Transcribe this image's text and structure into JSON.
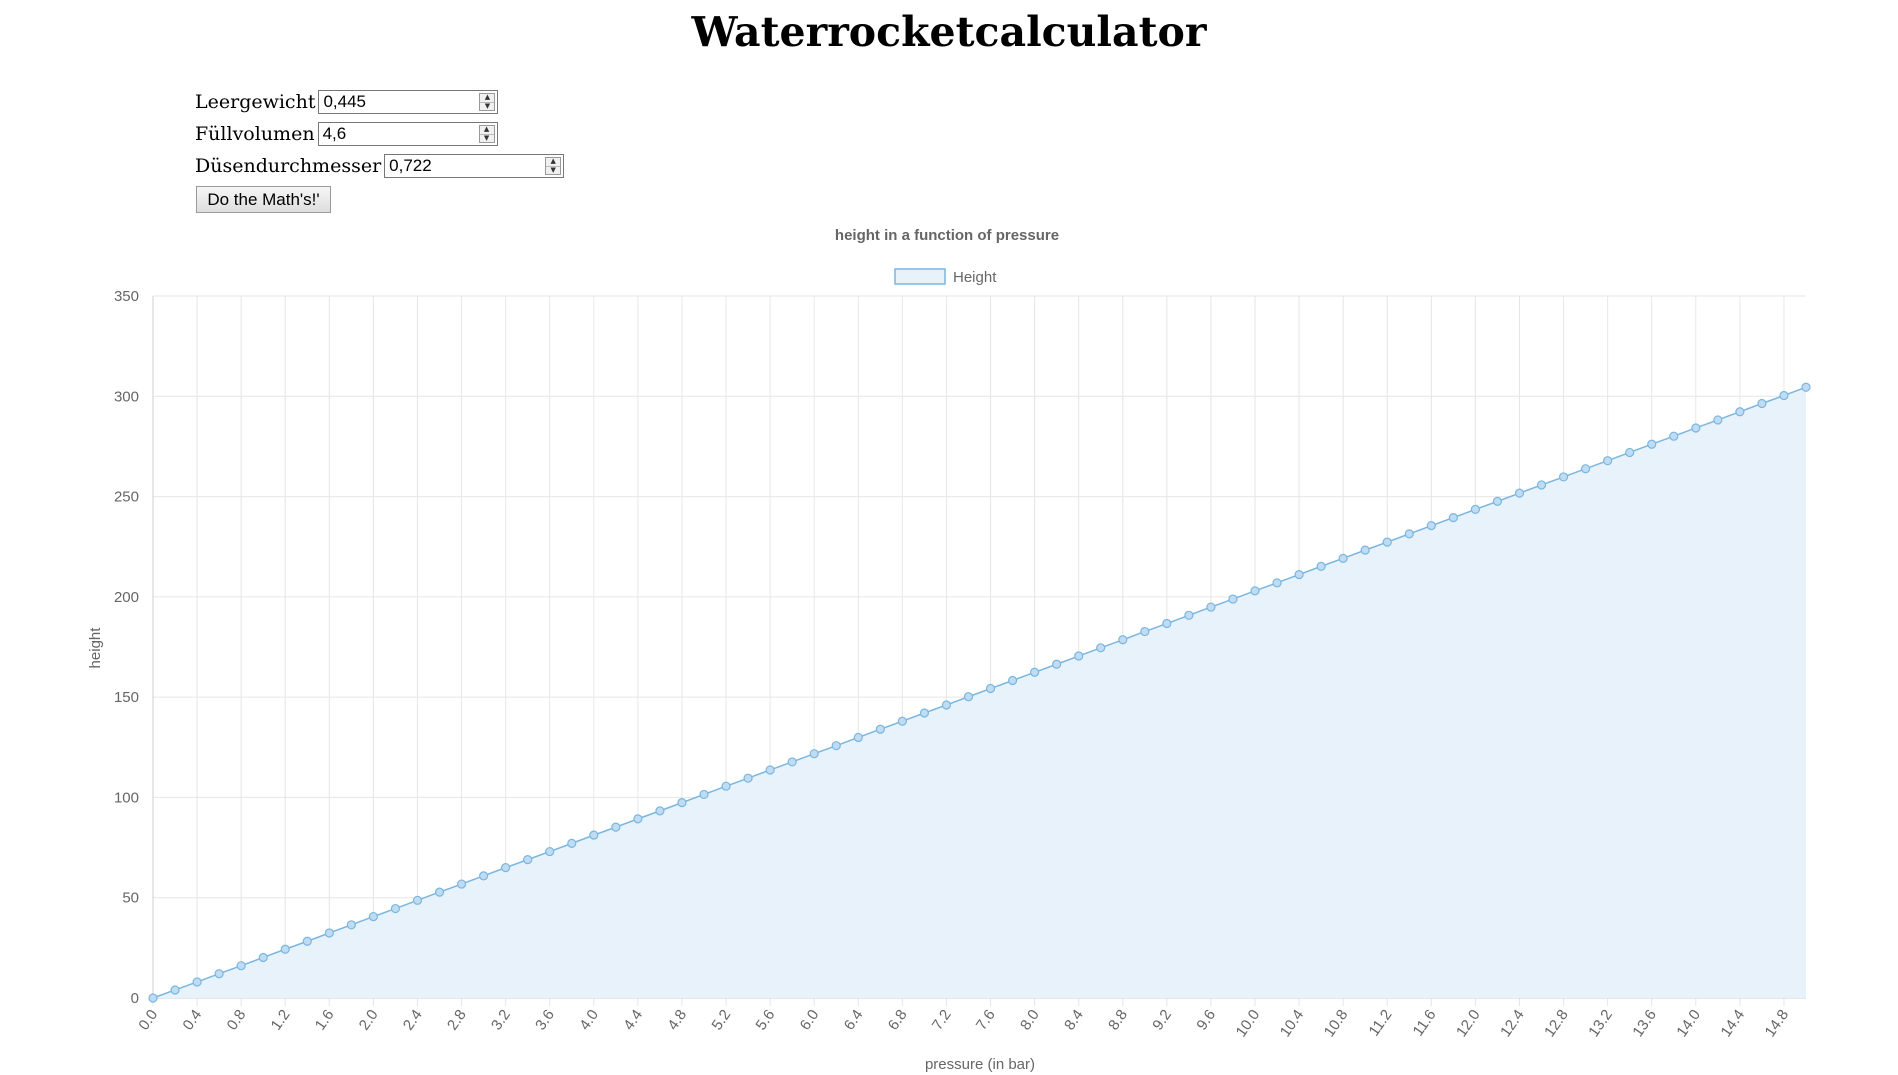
{
  "page": {
    "title": "Waterrocketcalculator"
  },
  "form": {
    "leergewicht": {
      "label": "Leergewicht",
      "value": "0,445"
    },
    "fuellvolumen": {
      "label": "Füllvolumen",
      "value": "4,6"
    },
    "duesendurchmesser": {
      "label": "Düsendurchmesser",
      "value": "0,722"
    },
    "button_label": "Do the Math's!'"
  },
  "chart_data": {
    "type": "area",
    "title": "height in a function of pressure",
    "xlabel": "pressure (in bar)",
    "ylabel": "height",
    "ylim": [
      0,
      350
    ],
    "yticks": [
      0,
      50,
      100,
      150,
      200,
      250,
      300,
      350
    ],
    "x_tick_labels": [
      "0.0",
      "0.4",
      "0.8",
      "1.2",
      "1.6",
      "2.0",
      "2.4",
      "2.8",
      "3.2",
      "3.6",
      "4.0",
      "4.4",
      "4.8",
      "5.2",
      "5.6",
      "6.0",
      "6.4",
      "6.8",
      "7.2",
      "7.6",
      "8.0",
      "8.4",
      "8.8",
      "9.2",
      "9.6",
      "10.0",
      "10.4",
      "10.8",
      "11.2",
      "11.6",
      "12.0",
      "12.4",
      "12.8",
      "13.2",
      "13.6",
      "14.0",
      "14.4",
      "14.8"
    ],
    "legend": "top",
    "grid": true,
    "colors": {
      "line": "#7ab6e0",
      "fill": "#e8f2fb",
      "point_fill": "#bfdcf2"
    },
    "series": [
      {
        "name": "Height",
        "x": [
          0.0,
          0.2,
          0.4,
          0.6,
          0.8,
          1.0,
          1.2,
          1.4,
          1.6,
          1.8,
          2.0,
          2.2,
          2.4,
          2.6,
          2.8,
          3.0,
          3.2,
          3.4,
          3.6,
          3.8,
          4.0,
          4.2,
          4.4,
          4.6,
          4.8,
          5.0,
          5.2,
          5.4,
          5.6,
          5.8,
          6.0,
          6.2,
          6.4,
          6.6,
          6.8,
          7.0,
          7.2,
          7.4,
          7.6,
          7.8,
          8.0,
          8.2,
          8.4,
          8.6,
          8.8,
          9.0,
          9.2,
          9.4,
          9.6,
          9.8,
          10.0,
          10.2,
          10.4,
          10.6,
          10.8,
          11.0,
          11.2,
          11.4,
          11.6,
          11.8,
          12.0,
          12.2,
          12.4,
          12.6,
          12.8,
          13.0,
          13.2,
          13.4,
          13.6,
          13.8,
          14.0,
          14.2,
          14.4,
          14.6,
          14.8,
          15.0
        ],
        "values": [
          0.0,
          4.0,
          8.0,
          12.1,
          16.1,
          20.2,
          24.3,
          28.3,
          32.4,
          36.5,
          40.6,
          44.6,
          48.7,
          52.8,
          56.8,
          60.9,
          65.0,
          69.0,
          73.0,
          77.1,
          81.2,
          85.2,
          89.3,
          93.3,
          97.4,
          101.5,
          105.6,
          109.6,
          113.7,
          117.7,
          121.8,
          125.8,
          129.9,
          134.0,
          138.0,
          142.1,
          146.1,
          150.2,
          154.3,
          158.3,
          162.4,
          166.4,
          170.5,
          174.6,
          178.6,
          182.7,
          186.7,
          190.8,
          194.9,
          198.9,
          203.0,
          207.0,
          211.1,
          215.2,
          219.2,
          223.3,
          227.3,
          231.4,
          235.5,
          239.5,
          243.6,
          247.6,
          251.7,
          255.8,
          259.8,
          263.9,
          267.9,
          272.0,
          276.1,
          280.1,
          284.2,
          288.2,
          292.3,
          296.4,
          300.4,
          304.5
        ]
      }
    ]
  }
}
